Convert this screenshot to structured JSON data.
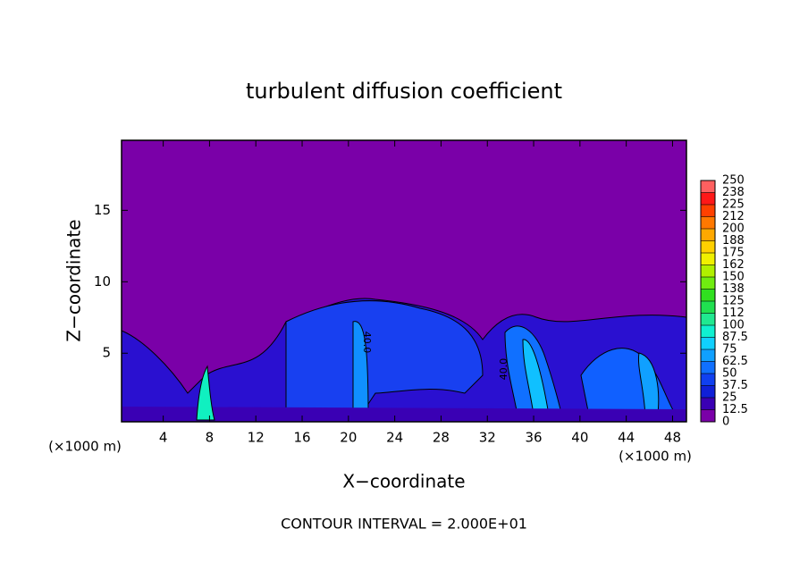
{
  "chart_data": {
    "type": "contour",
    "title": "turbulent diffusion coefficient",
    "x_label": "X−coordinate",
    "y_label": "Z−coordinate",
    "x_unit": "(×1000 m)",
    "y_unit": "(×1000 m)",
    "note": "CONTOUR INTERVAL = 2.000E+01",
    "contour_labels": [
      "40.0",
      "40.0"
    ],
    "xlim": [
      0.4,
      49.2
    ],
    "xticks": [
      4,
      8,
      12,
      16,
      20,
      24,
      28,
      32,
      36,
      40,
      44,
      48
    ],
    "ylim": [
      0.2,
      19.9
    ],
    "yticks": [
      5,
      10,
      15
    ],
    "colorbar": {
      "lim": [
        0,
        250
      ],
      "ticks": [
        0,
        12.5,
        25,
        37.5,
        50,
        62.5,
        75,
        87.5,
        100,
        {
          "value": 112.5,
          "label": "112"
        },
        125,
        {
          "value": 137.5,
          "label": "138"
        },
        150,
        {
          "value": 162.5,
          "label": "162"
        },
        175,
        {
          "value": 187.5,
          "label": "188"
        },
        200,
        {
          "value": 212.5,
          "label": "212"
        },
        225,
        {
          "value": 237.5,
          "label": "238"
        },
        250
      ],
      "colors": [
        "#7a00a8",
        "#3a00b4",
        "#1020d8",
        "#1040f0",
        "#1070ff",
        "#10a0ff",
        "#10d0ff",
        "#10f0d0",
        "#20e890",
        "#20e050",
        "#30e020",
        "#70ec10",
        "#b0f000",
        "#f0f000",
        "#ffd000",
        "#ffa800",
        "#ff7800",
        "#ff4000",
        "#ff1818",
        "#ff6060"
      ]
    }
  }
}
